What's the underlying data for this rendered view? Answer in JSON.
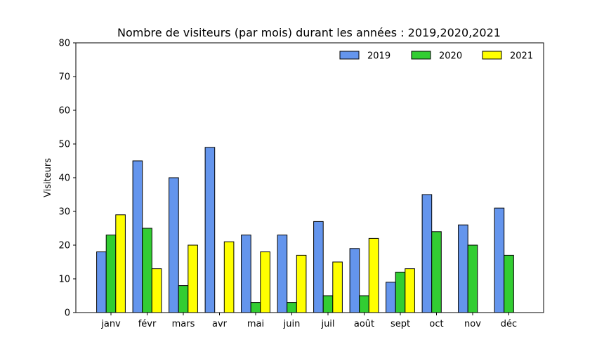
{
  "chart_data": {
    "type": "bar",
    "title": "Nombre de visiteurs (par mois) durant les années : 2019,2020,2021",
    "xlabel": "",
    "ylabel": "Visiteurs",
    "ylim": [
      0,
      80
    ],
    "yticks": [
      0,
      10,
      20,
      30,
      40,
      50,
      60,
      70,
      80
    ],
    "grid": false,
    "legend_position": "top-right",
    "categories": [
      "janv",
      "févr",
      "mars",
      "avr",
      "mai",
      "juin",
      "juil",
      "août",
      "sept",
      "oct",
      "nov",
      "déc"
    ],
    "series": [
      {
        "name": "2019",
        "color": "#6495ED",
        "values": [
          18,
          45,
          40,
          49,
          23,
          23,
          27,
          19,
          9,
          35,
          26,
          31
        ]
      },
      {
        "name": "2020",
        "color": "#32CD32",
        "values": [
          23,
          25,
          8,
          0,
          3,
          3,
          5,
          5,
          12,
          24,
          20,
          17
        ]
      },
      {
        "name": "2021",
        "color": "#FFFF00",
        "values": [
          29,
          13,
          20,
          21,
          18,
          17,
          15,
          22,
          13,
          0,
          0,
          0
        ]
      }
    ]
  }
}
